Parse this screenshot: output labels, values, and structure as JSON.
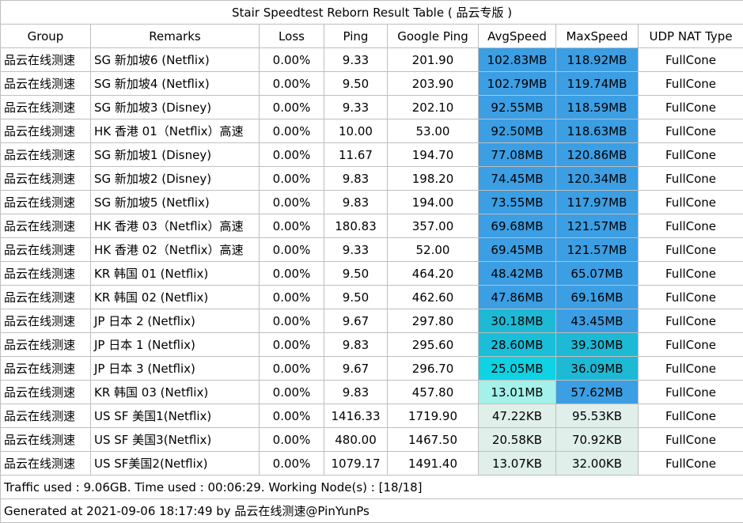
{
  "title": "Stair Speedtest Reborn Result Table ( 品云专版 )",
  "headers": [
    "Group",
    "Remarks",
    "Loss",
    "Ping",
    "Google Ping",
    "AvgSpeed",
    "MaxSpeed",
    "UDP NAT Type"
  ],
  "rows": [
    {
      "group": "品云在线测速",
      "remarks": "SG 新加坡6 (Netflix)",
      "loss": "0.00%",
      "ping": "9.33",
      "gping": "201.90",
      "avg": "102.83MB",
      "max": "118.92MB",
      "nat": "FullCone",
      "avg_color": "#3c9ee3",
      "max_color": "#3c9ee3"
    },
    {
      "group": "品云在线测速",
      "remarks": "SG 新加坡4 (Netflix)",
      "loss": "0.00%",
      "ping": "9.50",
      "gping": "203.90",
      "avg": "102.79MB",
      "max": "119.74MB",
      "nat": "FullCone",
      "avg_color": "#3c9ee3",
      "max_color": "#3c9ee3"
    },
    {
      "group": "品云在线测速",
      "remarks": "SG  新加坡3 (Disney)",
      "loss": "0.00%",
      "ping": "9.33",
      "gping": "202.10",
      "avg": "92.55MB",
      "max": "118.59MB",
      "nat": "FullCone",
      "avg_color": "#3c9ee3",
      "max_color": "#3c9ee3"
    },
    {
      "group": "品云在线测速",
      "remarks": "HK 香港 01（Netflix）高速",
      "loss": "0.00%",
      "ping": "10.00",
      "gping": "53.00",
      "avg": "92.50MB",
      "max": "118.63MB",
      "nat": "FullCone",
      "avg_color": "#3c9ee3",
      "max_color": "#3c9ee3"
    },
    {
      "group": "品云在线测速",
      "remarks": "SG  新加坡1 (Disney)",
      "loss": "0.00%",
      "ping": "11.67",
      "gping": "194.70",
      "avg": "77.08MB",
      "max": "120.86MB",
      "nat": "FullCone",
      "avg_color": "#3c9ee3",
      "max_color": "#3c9ee3"
    },
    {
      "group": "品云在线测速",
      "remarks": "SG 新加坡2 (Disney)",
      "loss": "0.00%",
      "ping": "9.83",
      "gping": "198.20",
      "avg": "74.45MB",
      "max": "120.34MB",
      "nat": "FullCone",
      "avg_color": "#3c9ee3",
      "max_color": "#3c9ee3"
    },
    {
      "group": "品云在线测速",
      "remarks": "SG 新加坡5 (Netflix)",
      "loss": "0.00%",
      "ping": "9.83",
      "gping": "194.00",
      "avg": "73.55MB",
      "max": "117.97MB",
      "nat": "FullCone",
      "avg_color": "#3c9ee3",
      "max_color": "#3c9ee3"
    },
    {
      "group": "品云在线测速",
      "remarks": "HK 香港 03（Netflix）高速",
      "loss": "0.00%",
      "ping": "180.83",
      "gping": "357.00",
      "avg": "69.68MB",
      "max": "121.57MB",
      "nat": "FullCone",
      "avg_color": "#3c9ee3",
      "max_color": "#3c9ee3"
    },
    {
      "group": "品云在线测速",
      "remarks": "HK 香港 02（Netflix）高速",
      "loss": "0.00%",
      "ping": "9.33",
      "gping": "52.00",
      "avg": "69.45MB",
      "max": "121.57MB",
      "nat": "FullCone",
      "avg_color": "#3c9ee3",
      "max_color": "#3c9ee3"
    },
    {
      "group": "品云在线测速",
      "remarks": "KR 韩国 01 (Netflix)",
      "loss": "0.00%",
      "ping": "9.50",
      "gping": "464.20",
      "avg": "48.42MB",
      "max": "65.07MB",
      "nat": "FullCone",
      "avg_color": "#3c9ee3",
      "max_color": "#3c9ee3"
    },
    {
      "group": "品云在线测速",
      "remarks": "KR 韩国  02 (Netflix)",
      "loss": "0.00%",
      "ping": "9.50",
      "gping": "462.60",
      "avg": "47.86MB",
      "max": "69.16MB",
      "nat": "FullCone",
      "avg_color": "#3c9ee3",
      "max_color": "#3c9ee3"
    },
    {
      "group": "品云在线测速",
      "remarks": "JP 日本 2 (Netflix)",
      "loss": "0.00%",
      "ping": "9.67",
      "gping": "297.80",
      "avg": "30.18MB",
      "max": "43.45MB",
      "nat": "FullCone",
      "avg_color": "#1eb9d4",
      "max_color": "#3c9ee3"
    },
    {
      "group": "品云在线测速",
      "remarks": "JP 日本 1 (Netflix)",
      "loss": "0.00%",
      "ping": "9.83",
      "gping": "295.60",
      "avg": "28.60MB",
      "max": "39.30MB",
      "nat": "FullCone",
      "avg_color": "#1abed9",
      "max_color": "#1eb9d4"
    },
    {
      "group": "品云在线测速",
      "remarks": "JP 日本 3 (Netflix)",
      "loss": "0.00%",
      "ping": "9.67",
      "gping": "296.70",
      "avg": "25.05MB",
      "max": "36.09MB",
      "nat": "FullCone",
      "avg_color": "#0fd2e3",
      "max_color": "#1eb9d4"
    },
    {
      "group": "品云在线测速",
      "remarks": "KR 韩国  03 (Netflix)",
      "loss": "0.00%",
      "ping": "9.83",
      "gping": "457.80",
      "avg": "13.01MB",
      "max": "57.62MB",
      "nat": "FullCone",
      "avg_color": "#a3f1ea",
      "max_color": "#3c9ee3"
    },
    {
      "group": "品云在线测速",
      "remarks": "US SF 美国1(Netflix)",
      "loss": "0.00%",
      "ping": "1416.33",
      "gping": "1719.90",
      "avg": "47.22KB",
      "max": "95.53KB",
      "nat": "FullCone",
      "avg_color": "#e0efe9",
      "max_color": "#e0efe9"
    },
    {
      "group": "品云在线测速",
      "remarks": "US SF 美国3(Netflix)",
      "loss": "0.00%",
      "ping": "480.00",
      "gping": "1467.50",
      "avg": "20.58KB",
      "max": "70.92KB",
      "nat": "FullCone",
      "avg_color": "#e0efe9",
      "max_color": "#e0efe9"
    },
    {
      "group": "品云在线测速",
      "remarks": "US SF美国2(Netflix)",
      "loss": "0.00%",
      "ping": "1079.17",
      "gping": "1491.40",
      "avg": "13.07KB",
      "max": "32.00KB",
      "nat": "FullCone",
      "avg_color": "#e0efe9",
      "max_color": "#e0efe9"
    }
  ],
  "traffic_line": "Traffic used : 9.06GB. Time used : 00:06:29. Working Node(s) : [18/18]",
  "generated_line": "Generated at 2021-09-06 18:17:49 by 品云在线测速@PinYunPs"
}
